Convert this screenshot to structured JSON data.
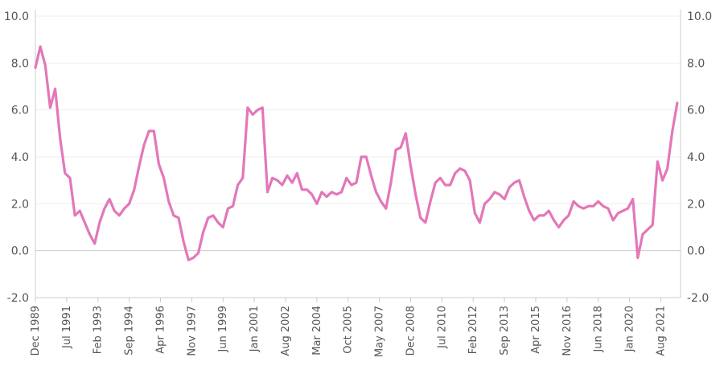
{
  "chart_data": {
    "type": "line",
    "title": "",
    "xlabel": "",
    "ylabel": "",
    "ylim": [
      -2,
      10
    ],
    "yticks": [
      "-2.0",
      "0.0",
      "2.0",
      "4.0",
      "6.0",
      "8.0",
      "10.0"
    ],
    "grid": true,
    "legend": "none",
    "colors": {
      "line": "#e377b9",
      "grid": "#eeeeee",
      "axis": "#cccccc",
      "zero": "#cccccc"
    },
    "xtick_labels": [
      "Dec 1989",
      "Jul 1991",
      "Feb 1993",
      "Sep 1994",
      "Apr 1996",
      "Nov 1997",
      "Jun 1999",
      "Jan 2001",
      "Aug 2002",
      "Mar 2004",
      "Oct 2005",
      "May 2007",
      "Dec 2008",
      "Jul 2010",
      "Feb 2012",
      "Sep 2013",
      "Apr 2015",
      "Nov 2016",
      "Jun 2018",
      "Jan 2020",
      "Aug 2021"
    ],
    "series": [
      {
        "points": [
          [
            "1989-12",
            7.8
          ],
          [
            "1990-03",
            8.7
          ],
          [
            "1990-06",
            7.9
          ],
          [
            "1990-09",
            6.1
          ],
          [
            "1990-12",
            6.9
          ],
          [
            "1991-03",
            4.8
          ],
          [
            "1991-06",
            3.3
          ],
          [
            "1991-09",
            3.1
          ],
          [
            "1991-12",
            1.5
          ],
          [
            "1992-03",
            1.7
          ],
          [
            "1992-06",
            1.2
          ],
          [
            "1992-09",
            0.7
          ],
          [
            "1992-12",
            0.3
          ],
          [
            "1993-03",
            1.2
          ],
          [
            "1993-06",
            1.8
          ],
          [
            "1993-09",
            2.2
          ],
          [
            "1993-12",
            1.7
          ],
          [
            "1994-03",
            1.5
          ],
          [
            "1994-06",
            1.8
          ],
          [
            "1994-09",
            2.0
          ],
          [
            "1994-12",
            2.6
          ],
          [
            "1995-03",
            3.6
          ],
          [
            "1995-06",
            4.5
          ],
          [
            "1995-09",
            5.1
          ],
          [
            "1995-12",
            5.1
          ],
          [
            "1996-03",
            3.7
          ],
          [
            "1996-06",
            3.1
          ],
          [
            "1996-09",
            2.1
          ],
          [
            "1996-12",
            1.5
          ],
          [
            "1997-03",
            1.4
          ],
          [
            "1997-06",
            0.4
          ],
          [
            "1997-09",
            -0.4
          ],
          [
            "1997-12",
            -0.3
          ],
          [
            "1998-03",
            -0.1
          ],
          [
            "1998-06",
            0.8
          ],
          [
            "1998-09",
            1.4
          ],
          [
            "1998-12",
            1.5
          ],
          [
            "1999-03",
            1.2
          ],
          [
            "1999-06",
            1.0
          ],
          [
            "1999-09",
            1.8
          ],
          [
            "1999-12",
            1.9
          ],
          [
            "2000-03",
            2.8
          ],
          [
            "2000-06",
            3.1
          ],
          [
            "2000-09",
            6.1
          ],
          [
            "2000-12",
            5.8
          ],
          [
            "2001-03",
            6.0
          ],
          [
            "2001-06",
            6.1
          ],
          [
            "2001-09",
            2.5
          ],
          [
            "2001-12",
            3.1
          ],
          [
            "2002-03",
            3.0
          ],
          [
            "2002-06",
            2.8
          ],
          [
            "2002-09",
            3.2
          ],
          [
            "2002-12",
            2.9
          ],
          [
            "2003-03",
            3.3
          ],
          [
            "2003-06",
            2.6
          ],
          [
            "2003-09",
            2.6
          ],
          [
            "2003-12",
            2.4
          ],
          [
            "2004-03",
            2.0
          ],
          [
            "2004-06",
            2.5
          ],
          [
            "2004-09",
            2.3
          ],
          [
            "2004-12",
            2.5
          ],
          [
            "2005-03",
            2.4
          ],
          [
            "2005-06",
            2.5
          ],
          [
            "2005-09",
            3.1
          ],
          [
            "2005-12",
            2.8
          ],
          [
            "2006-03",
            2.9
          ],
          [
            "2006-06",
            4.0
          ],
          [
            "2006-09",
            4.0
          ],
          [
            "2006-12",
            3.2
          ],
          [
            "2007-03",
            2.5
          ],
          [
            "2007-06",
            2.1
          ],
          [
            "2007-09",
            1.8
          ],
          [
            "2007-12",
            2.9
          ],
          [
            "2008-03",
            4.3
          ],
          [
            "2008-06",
            4.4
          ],
          [
            "2008-09",
            5.0
          ],
          [
            "2008-12",
            3.6
          ],
          [
            "2009-03",
            2.4
          ],
          [
            "2009-06",
            1.4
          ],
          [
            "2009-09",
            1.2
          ],
          [
            "2009-12",
            2.1
          ],
          [
            "2010-03",
            2.9
          ],
          [
            "2010-06",
            3.1
          ],
          [
            "2010-09",
            2.8
          ],
          [
            "2010-12",
            2.8
          ],
          [
            "2011-03",
            3.3
          ],
          [
            "2011-06",
            3.5
          ],
          [
            "2011-09",
            3.4
          ],
          [
            "2011-12",
            3.0
          ],
          [
            "2012-03",
            1.6
          ],
          [
            "2012-06",
            1.2
          ],
          [
            "2012-09",
            2.0
          ],
          [
            "2012-12",
            2.2
          ],
          [
            "2013-03",
            2.5
          ],
          [
            "2013-06",
            2.4
          ],
          [
            "2013-09",
            2.2
          ],
          [
            "2013-12",
            2.7
          ],
          [
            "2014-03",
            2.9
          ],
          [
            "2014-06",
            3.0
          ],
          [
            "2014-09",
            2.3
          ],
          [
            "2014-12",
            1.7
          ],
          [
            "2015-03",
            1.3
          ],
          [
            "2015-06",
            1.5
          ],
          [
            "2015-09",
            1.5
          ],
          [
            "2015-12",
            1.7
          ],
          [
            "2016-03",
            1.3
          ],
          [
            "2016-06",
            1.0
          ],
          [
            "2016-09",
            1.3
          ],
          [
            "2016-12",
            1.5
          ],
          [
            "2017-03",
            2.1
          ],
          [
            "2017-06",
            1.9
          ],
          [
            "2017-09",
            1.8
          ],
          [
            "2017-12",
            1.9
          ],
          [
            "2018-03",
            1.9
          ],
          [
            "2018-06",
            2.1
          ],
          [
            "2018-09",
            1.9
          ],
          [
            "2018-12",
            1.8
          ],
          [
            "2019-03",
            1.3
          ],
          [
            "2019-06",
            1.6
          ],
          [
            "2019-09",
            1.7
          ],
          [
            "2019-12",
            1.8
          ],
          [
            "2020-03",
            2.2
          ],
          [
            "2020-06",
            -0.3
          ],
          [
            "2020-09",
            0.7
          ],
          [
            "2020-12",
            0.9
          ],
          [
            "2021-03",
            1.1
          ],
          [
            "2021-06",
            3.8
          ],
          [
            "2021-09",
            3.0
          ],
          [
            "2021-12",
            3.5
          ],
          [
            "2022-03",
            5.1
          ],
          [
            "2022-06",
            6.3
          ]
        ]
      }
    ]
  }
}
